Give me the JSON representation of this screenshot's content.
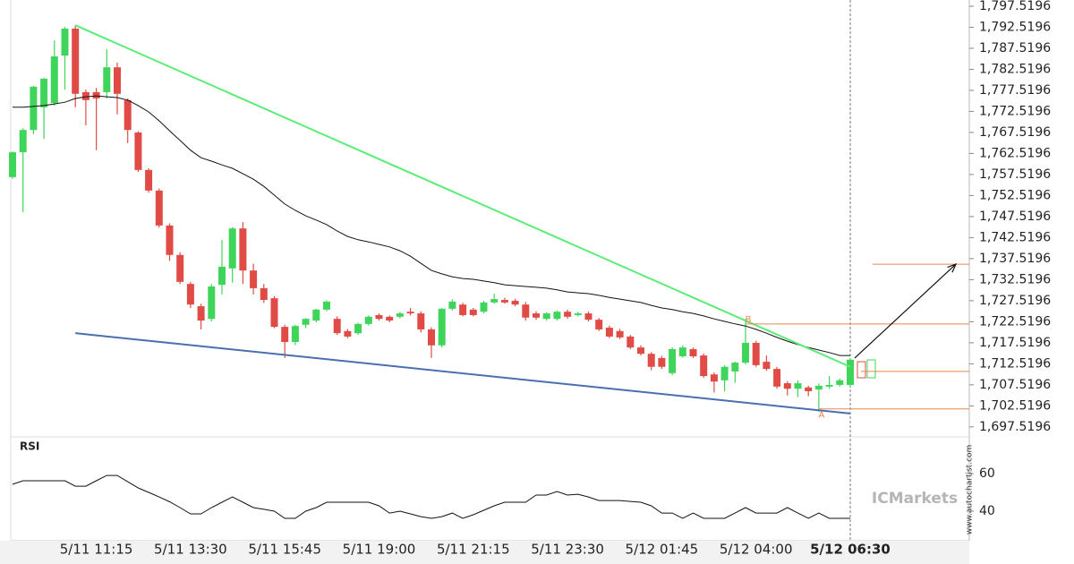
{
  "chart_data": {
    "type": "candlestick",
    "categories": [
      null,
      null,
      null,
      null,
      null,
      null,
      null,
      null,
      "5/11 11:15",
      null,
      null,
      null,
      null,
      null,
      null,
      null,
      null,
      "5/11 13:30",
      null,
      null,
      null,
      null,
      null,
      null,
      null,
      null,
      "5/11 15:45",
      null,
      null,
      null,
      null,
      null,
      null,
      null,
      null,
      "5/11 19:00",
      null,
      null,
      null,
      null,
      null,
      null,
      null,
      null,
      "5/11 21:15",
      null,
      null,
      null,
      null,
      null,
      null,
      null,
      null,
      "5/11 23:30",
      null,
      null,
      null,
      null,
      null,
      null,
      null,
      null,
      "5/12 01:45",
      null,
      null,
      null,
      null,
      null,
      null,
      null,
      null,
      "5/12 04:00",
      null,
      null,
      null,
      null,
      null,
      null,
      null,
      null,
      "5/12 06:30"
    ],
    "ohlc": [
      [
        1756.9,
        1763.0,
        1756.5,
        1762.8
      ],
      [
        1762.8,
        1768.5,
        1748.6,
        1768.1
      ],
      [
        1768.1,
        1778.6,
        1767.1,
        1778.4
      ],
      [
        1773.5,
        1780.5,
        1766.0,
        1780.3
      ],
      [
        1774.5,
        1789.4,
        1773.9,
        1785.6
      ],
      [
        1785.8,
        1792.6,
        1777.7,
        1792.2
      ],
      [
        1792.2,
        1793.0,
        1773.5,
        1776.7
      ],
      [
        1777.1,
        1777.7,
        1769.2,
        1775.2
      ],
      [
        1777.1,
        1778.1,
        1763.3,
        1775.6
      ],
      [
        1777.1,
        1787.3,
        1775.6,
        1783.0
      ],
      [
        1783.0,
        1784.1,
        1771.8,
        1776.7
      ],
      [
        1775.2,
        1775.6,
        1765.0,
        1768.1
      ],
      [
        1767.5,
        1767.8,
        1758.1,
        1758.6
      ],
      [
        1758.6,
        1759.0,
        1753.2,
        1753.7
      ],
      [
        1753.7,
        1754.2,
        1744.9,
        1745.4
      ],
      [
        1745.4,
        1745.9,
        1737.0,
        1738.4
      ],
      [
        1738.4,
        1739.0,
        1731.5,
        1732.0
      ],
      [
        1731.5,
        1732.0,
        1725.8,
        1726.6
      ],
      [
        1726.2,
        1726.8,
        1720.7,
        1722.8
      ],
      [
        1723.2,
        1731.5,
        1722.6,
        1730.9
      ],
      [
        1731.3,
        1742.0,
        1729.0,
        1735.6
      ],
      [
        1735.2,
        1745.0,
        1731.8,
        1744.7
      ],
      [
        1744.7,
        1746.2,
        1731.5,
        1734.7
      ],
      [
        1734.7,
        1736.3,
        1729.0,
        1730.5
      ],
      [
        1730.5,
        1731.5,
        1727.0,
        1727.7
      ],
      [
        1728.1,
        1728.6,
        1721.0,
        1721.3
      ],
      [
        1721.3,
        1721.8,
        1713.9,
        1717.7
      ],
      [
        1717.7,
        1721.8,
        1717.0,
        1721.5
      ],
      [
        1721.8,
        1723.4,
        1721.0,
        1723.2
      ],
      [
        1722.8,
        1725.6,
        1722.4,
        1725.4
      ],
      [
        1725.4,
        1727.6,
        1725.0,
        1727.3
      ],
      [
        1723.2,
        1723.8,
        1719.4,
        1719.8
      ],
      [
        1720.3,
        1720.8,
        1718.6,
        1719.0
      ],
      [
        1719.8,
        1722.3,
        1719.4,
        1722.0
      ],
      [
        1722.0,
        1724.0,
        1721.6,
        1723.7
      ],
      [
        1724.1,
        1724.5,
        1722.8,
        1723.2
      ],
      [
        1723.7,
        1724.0,
        1722.4,
        1722.8
      ],
      [
        1723.7,
        1724.9,
        1723.3,
        1724.5
      ],
      [
        1724.9,
        1725.8,
        1724.0,
        1724.5
      ],
      [
        1724.5,
        1725.0,
        1720.0,
        1720.7
      ],
      [
        1720.7,
        1721.2,
        1713.9,
        1716.9
      ],
      [
        1716.9,
        1725.8,
        1716.4,
        1725.6
      ],
      [
        1725.6,
        1727.8,
        1725.2,
        1727.3
      ],
      [
        1726.6,
        1727.0,
        1723.8,
        1724.1
      ],
      [
        1725.4,
        1725.8,
        1723.8,
        1724.1
      ],
      [
        1724.9,
        1727.5,
        1724.5,
        1727.1
      ],
      [
        1727.1,
        1729.2,
        1726.8,
        1727.9
      ],
      [
        1727.7,
        1728.2,
        1726.8,
        1727.1
      ],
      [
        1727.5,
        1728.0,
        1726.2,
        1726.6
      ],
      [
        1726.6,
        1727.2,
        1722.8,
        1723.5
      ],
      [
        1724.5,
        1725.0,
        1723.0,
        1723.5
      ],
      [
        1723.2,
        1724.8,
        1722.8,
        1724.5
      ],
      [
        1723.2,
        1725.2,
        1722.8,
        1724.9
      ],
      [
        1724.9,
        1725.4,
        1723.2,
        1723.7
      ],
      [
        1724.1,
        1724.9,
        1723.8,
        1724.5
      ],
      [
        1724.5,
        1725.0,
        1722.6,
        1723.0
      ],
      [
        1723.0,
        1723.4,
        1720.3,
        1720.7
      ],
      [
        1721.1,
        1721.6,
        1718.6,
        1719.0
      ],
      [
        1720.3,
        1720.8,
        1718.4,
        1718.8
      ],
      [
        1719.0,
        1719.4,
        1716.0,
        1716.4
      ],
      [
        1716.4,
        1716.9,
        1714.5,
        1714.9
      ],
      [
        1714.9,
        1715.3,
        1711.0,
        1711.8
      ],
      [
        1713.9,
        1714.4,
        1711.3,
        1711.8
      ],
      [
        1710.3,
        1716.4,
        1709.8,
        1716.0
      ],
      [
        1714.3,
        1716.9,
        1714.0,
        1716.4
      ],
      [
        1716.0,
        1716.4,
        1713.9,
        1714.3
      ],
      [
        1714.5,
        1715.0,
        1709.2,
        1709.6
      ],
      [
        1710.0,
        1710.5,
        1705.7,
        1708.3
      ],
      [
        1708.6,
        1712.2,
        1706.0,
        1711.8
      ],
      [
        1710.7,
        1713.0,
        1708.0,
        1712.8
      ],
      [
        1712.8,
        1723.2,
        1712.4,
        1717.5
      ],
      [
        1717.5,
        1718.0,
        1711.8,
        1712.2
      ],
      [
        1713.0,
        1714.5,
        1710.9,
        1711.3
      ],
      [
        1711.3,
        1711.8,
        1706.6,
        1707.1
      ],
      [
        1707.9,
        1708.4,
        1705.0,
        1706.6
      ],
      [
        1706.6,
        1708.6,
        1704.6,
        1707.9
      ],
      [
        1706.9,
        1707.3,
        1704.8,
        1706.0
      ],
      [
        1706.4,
        1707.8,
        1701.1,
        1707.3
      ],
      [
        1707.1,
        1709.6,
        1706.6,
        1707.5
      ],
      [
        1707.5,
        1709.0,
        1707.1,
        1708.6
      ],
      [
        1707.5,
        1713.9,
        1707.1,
        1713.5
      ]
    ],
    "up_color": "#3fd45a",
    "down_color": "#e04b46",
    "ylim": [
      1696.0,
      1799.0
    ],
    "yticks": [
      {
        "value": 1697.5196,
        "label": "1,697.5196"
      },
      {
        "value": 1702.5196,
        "label": "1,702.5196"
      },
      {
        "value": 1707.5196,
        "label": "1,707.5196"
      },
      {
        "value": 1712.5196,
        "label": "1,712.5196"
      },
      {
        "value": 1717.5196,
        "label": "1,717.5196"
      },
      {
        "value": 1722.5196,
        "label": "1,722.5196"
      },
      {
        "value": 1727.5196,
        "label": "1,727.5196"
      },
      {
        "value": 1732.5196,
        "label": "1,732.5196"
      },
      {
        "value": 1737.5196,
        "label": "1,737.5196"
      },
      {
        "value": 1742.5196,
        "label": "1,742.5196"
      },
      {
        "value": 1747.5196,
        "label": "1,747.5196"
      },
      {
        "value": 1752.5196,
        "label": "1,752.5196"
      },
      {
        "value": 1757.5196,
        "label": "1,757.5196"
      },
      {
        "value": 1762.5196,
        "label": "1,762.5196"
      },
      {
        "value": 1767.5196,
        "label": "1,767.5196"
      },
      {
        "value": 1772.5196,
        "label": "1,772.5196"
      },
      {
        "value": 1777.5196,
        "label": "1,777.5196"
      },
      {
        "value": 1782.5196,
        "label": "1,782.5196"
      },
      {
        "value": 1787.5196,
        "label": "1,787.5196"
      },
      {
        "value": 1792.5196,
        "label": "1,792.5196"
      },
      {
        "value": 1797.5196,
        "label": "1,797.5196"
      }
    ],
    "ma": {
      "color": "#111111",
      "values": [
        1773.5,
        1773.5,
        1773.7,
        1773.9,
        1774.3,
        1774.7,
        1775.6,
        1776.0,
        1776.2,
        1776.0,
        1775.8,
        1775.2,
        1773.9,
        1772.4,
        1770.3,
        1767.9,
        1765.6,
        1763.3,
        1761.5,
        1760.7,
        1759.8,
        1759.0,
        1757.7,
        1756.4,
        1754.7,
        1752.6,
        1750.5,
        1749.0,
        1747.7,
        1746.7,
        1745.6,
        1744.1,
        1742.8,
        1742.0,
        1741.5,
        1740.9,
        1740.3,
        1739.4,
        1738.1,
        1736.4,
        1734.7,
        1733.9,
        1733.2,
        1732.8,
        1732.6,
        1732.2,
        1731.8,
        1731.3,
        1731.1,
        1730.9,
        1730.7,
        1730.5,
        1730.1,
        1729.6,
        1729.4,
        1729.2,
        1728.8,
        1728.3,
        1727.9,
        1727.5,
        1727.1,
        1726.4,
        1725.8,
        1725.4,
        1724.9,
        1724.5,
        1723.9,
        1723.2,
        1722.6,
        1722.0,
        1721.5,
        1720.7,
        1719.8,
        1718.8,
        1717.9,
        1717.1,
        1716.4,
        1715.8,
        1715.2,
        1714.5,
        1714.5
      ]
    },
    "trendlines": [
      {
        "color": "#5cec78",
        "x": [
          7,
          81
        ],
        "y": [
          1793.0,
          1711.8
        ]
      },
      {
        "color": "#4a6fb0",
        "x": [
          7,
          81
        ],
        "y": [
          1719.8,
          1700.7
        ]
      }
    ],
    "annotations": [
      {
        "label": "B",
        "x": 71,
        "value": 1722.0
      },
      {
        "label": "A",
        "x": 78,
        "value": 1701.8
      }
    ],
    "levels": [
      1736.2,
      1710.7
    ],
    "level_color": "#e8874e",
    "rsi": {
      "title": "RSI",
      "color": "#111111",
      "ylim": [
        24.3,
        78.6
      ],
      "yticks": [
        40,
        60
      ],
      "values": [
        54.3,
        56.2,
        56.2,
        56.2,
        56.2,
        56.2,
        53.3,
        53.3,
        56.2,
        59.0,
        59.0,
        55.7,
        52.4,
        50,
        47.6,
        45,
        41.9,
        38.6,
        38.6,
        41.9,
        44.8,
        47.6,
        44.8,
        41.9,
        41,
        40,
        36.2,
        36.2,
        40,
        41.9,
        44.8,
        44.8,
        44.8,
        44.8,
        44.8,
        42.9,
        39.0,
        40,
        38.6,
        37.1,
        36.2,
        37.1,
        39.0,
        36.2,
        38.1,
        40.5,
        42.9,
        44.8,
        44.8,
        44.8,
        48.6,
        48.6,
        50.5,
        48.6,
        49.0,
        47.6,
        45.7,
        45.7,
        45.7,
        45.2,
        44.8,
        42.9,
        39.0,
        39.0,
        36.2,
        39.0,
        36.2,
        36.2,
        36.2,
        39.0,
        41.9,
        39.0,
        39.0,
        39.0,
        41.9,
        39.0,
        36.2,
        39.0,
        36.2,
        36.2,
        36.2
      ]
    }
  },
  "branding": {
    "logo": "ICMarkets",
    "watermark": "www.autochartist.com"
  }
}
